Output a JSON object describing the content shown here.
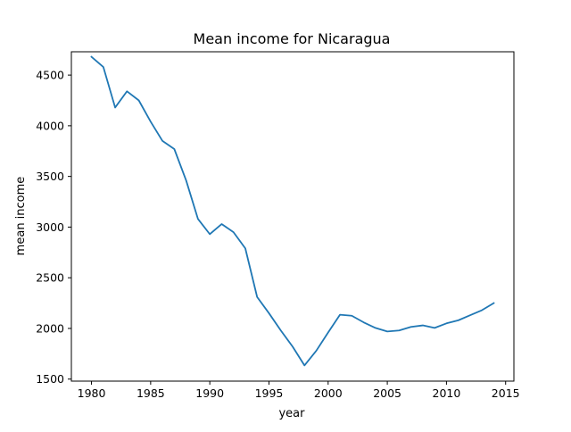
{
  "chart_data": {
    "type": "line",
    "title": "Mean income for Nicaragua",
    "xlabel": "year",
    "ylabel": "mean income",
    "xlim": [
      1978.3,
      2015.7
    ],
    "ylim": [
      1480,
      4730
    ],
    "xticks": [
      1980,
      1985,
      1990,
      1995,
      2000,
      2005,
      2010,
      2015
    ],
    "yticks": [
      1500,
      2000,
      2500,
      3000,
      3500,
      4000,
      4500
    ],
    "grid": false,
    "line_color": "#1f77b4",
    "series": [
      {
        "x": [
          1980,
          1981,
          1982,
          1983,
          1984,
          1985,
          1986,
          1987,
          1988,
          1989,
          1990,
          1991,
          1992,
          1993,
          1994,
          1995,
          1996,
          1997,
          1998,
          1999,
          2000,
          2001,
          2002,
          2003,
          2004,
          2005,
          2006,
          2007,
          2008,
          2009,
          2010,
          2011,
          2012,
          2013,
          2014
        ],
        "y": [
          4680,
          4580,
          4180,
          4340,
          4250,
          4040,
          3850,
          3770,
          3460,
          3080,
          2930,
          3030,
          2950,
          2790,
          2310,
          2150,
          1980,
          1820,
          1635,
          1780,
          1960,
          2135,
          2125,
          2060,
          2005,
          1970,
          1980,
          2015,
          2030,
          2005,
          2050,
          2080,
          2130,
          2180,
          2250
        ]
      }
    ]
  }
}
